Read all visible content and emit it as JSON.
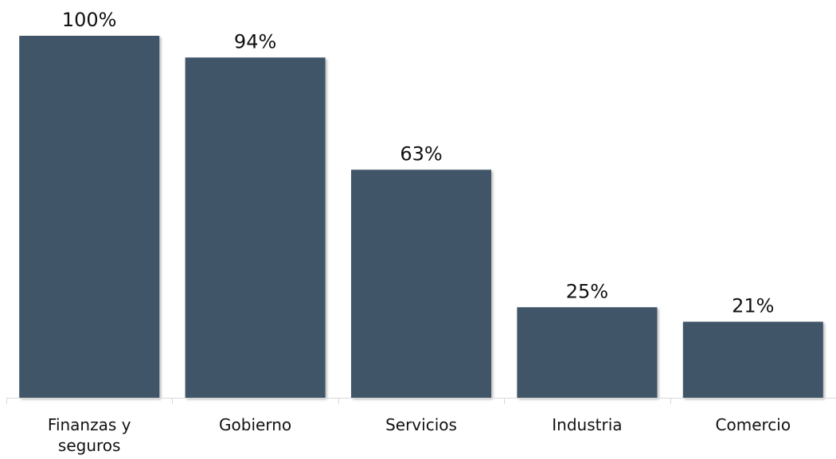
{
  "chart_data": {
    "type": "bar",
    "categories": [
      [
        "Finanzas y",
        "seguros"
      ],
      [
        "Gobierno"
      ],
      [
        "Servicios"
      ],
      [
        "Industria"
      ],
      [
        "Comercio"
      ]
    ],
    "values": [
      100,
      94,
      63,
      25,
      21
    ],
    "data_labels": [
      "100%",
      "94%",
      "63%",
      "25%",
      "21%"
    ],
    "ylim": [
      0,
      100
    ],
    "grid": false,
    "legend": "none",
    "colors": {
      "bar": "#415468",
      "axis": "#d9d9d9",
      "text": "#111111"
    }
  }
}
